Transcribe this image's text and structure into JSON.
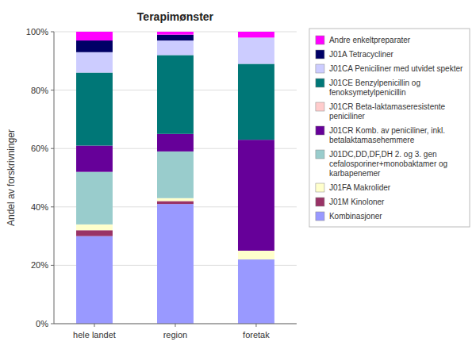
{
  "chart_data": {
    "type": "bar",
    "stacked": true,
    "title": "Terapimønster",
    "ylabel": "Andel av forskrivninger",
    "categories": [
      "hele landet",
      "region",
      "foretak"
    ],
    "series": [
      {
        "name": "Kombinasjoner",
        "color": "#9999FF",
        "values": [
          30,
          41,
          22
        ]
      },
      {
        "name": "J01M Kinoloner",
        "color": "#993366",
        "values": [
          2,
          1,
          0
        ]
      },
      {
        "name": "J01FA Makrolider",
        "color": "#FFFFCC",
        "values": [
          2,
          1,
          3
        ]
      },
      {
        "name": "J01DC,DD,DF,DH 2. og 3. gen\ncefalosporiner+monobaktamer og\nkarbapenemer",
        "color": "#99CCCC",
        "values": [
          18,
          16,
          0
        ]
      },
      {
        "name": "J01CR Komb. av peniciliner, inkl.\nbetalaktamasehemmere",
        "color": "#660099",
        "values": [
          9,
          6,
          38
        ]
      },
      {
        "name": "J01CR Beta-laktamaseresistente\npeniciliner",
        "color": "#FFCCCC",
        "values": [
          0,
          0,
          0
        ]
      },
      {
        "name": "J01CE Benzylpenicillin og\nfenoksymetylpenicillin",
        "color": "#007777",
        "values": [
          25,
          27,
          26
        ]
      },
      {
        "name": "J01CA Peniciliner med utvidet spekter",
        "color": "#CCCCFF",
        "values": [
          7,
          5,
          9
        ]
      },
      {
        "name": "J01A Tetracycliner",
        "color": "#000066",
        "values": [
          4,
          2,
          0
        ]
      },
      {
        "name": "Andre enkeltpreparater",
        "color": "#FF00FF",
        "values": [
          3,
          1,
          2
        ]
      }
    ],
    "ylim": [
      0,
      100
    ],
    "yticks": [
      {
        "value": 0,
        "label": "0%"
      },
      {
        "value": 20,
        "label": "20%"
      },
      {
        "value": 40,
        "label": "40%"
      },
      {
        "value": 60,
        "label": "60%"
      },
      {
        "value": 80,
        "label": "80%"
      },
      {
        "value": 100,
        "label": "100%"
      }
    ],
    "grid": true,
    "legend": "right"
  }
}
